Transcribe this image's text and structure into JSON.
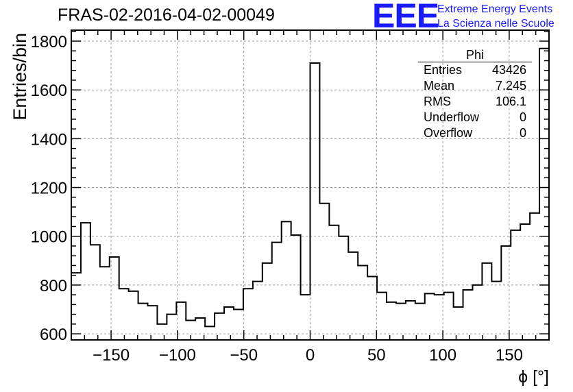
{
  "chart_data": {
    "type": "histogram",
    "title": "FRAS-02-2016-04-02-00049",
    "xlabel": "ϕ [°]",
    "ylabel": "Entries/bin",
    "xlim": [
      -180,
      180
    ],
    "ylim": [
      575,
      1845
    ],
    "bin_width": 7.2,
    "xticks": [
      -150,
      -100,
      -50,
      0,
      50,
      100,
      150
    ],
    "xtick_labels": [
      "−150",
      "−100",
      "−50",
      "0",
      "50",
      "100",
      "150"
    ],
    "yticks": [
      600,
      800,
      1000,
      1200,
      1400,
      1600,
      1800
    ],
    "ytick_labels": [
      "600",
      "800",
      "1000",
      "1200",
      "1400",
      "1600",
      "1800"
    ],
    "grid": true,
    "values": [
      850,
      1055,
      965,
      875,
      915,
      785,
      775,
      725,
      715,
      640,
      680,
      730,
      655,
      665,
      630,
      685,
      710,
      700,
      785,
      815,
      890,
      975,
      1060,
      1005,
      760,
      1710,
      1135,
      1045,
      1000,
      935,
      880,
      835,
      770,
      730,
      725,
      735,
      725,
      765,
      760,
      770,
      710,
      780,
      800,
      890,
      815,
      960,
      1025,
      1050,
      1095,
      1770
    ]
  },
  "stats_box": {
    "name": "Phi",
    "rows": [
      {
        "label": "Entries",
        "value": "43426"
      },
      {
        "label": "Mean",
        "value": "7.245"
      },
      {
        "label": "RMS",
        "value": "106.1"
      },
      {
        "label": "Underflow",
        "value": "0"
      },
      {
        "label": "Overflow",
        "value": "0"
      }
    ]
  },
  "logo": {
    "mark": "EEE",
    "line1": "Extreme Energy Events",
    "line2": "La Scienza nelle Scuole",
    "color": "#1a1aff"
  }
}
